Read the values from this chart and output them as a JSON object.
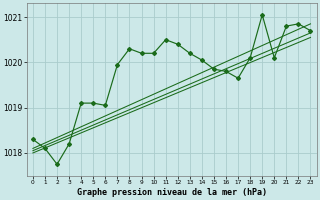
{
  "title": "Graphe pression niveau de la mer (hPa)",
  "x_labels": [
    "0",
    "1",
    "2",
    "3",
    "4",
    "5",
    "6",
    "7",
    "8",
    "9",
    "10",
    "11",
    "12",
    "13",
    "14",
    "15",
    "16",
    "17",
    "18",
    "19",
    "20",
    "21",
    "22",
    "23"
  ],
  "ylim": [
    1017.5,
    1021.3
  ],
  "yticks": [
    1018,
    1019,
    1020,
    1021
  ],
  "main_line": [
    1018.3,
    1018.1,
    1017.75,
    1018.2,
    1019.1,
    1019.1,
    1019.05,
    1019.95,
    1020.3,
    1020.2,
    1020.2,
    1020.5,
    1020.4,
    1020.2,
    1020.05,
    1019.85,
    1019.8,
    1019.65,
    1020.1,
    1021.05,
    1020.1,
    1020.8,
    1020.85,
    1020.7
  ],
  "trend_lines": [
    [
      1018.1,
      1020.85
    ],
    [
      1018.05,
      1020.65
    ],
    [
      1018.0,
      1020.55
    ]
  ],
  "bg_color": "#cce8e8",
  "grid_color": "#aacccc",
  "line_color": "#1a6b1a",
  "marker": "D",
  "marker_size": 2.0,
  "title_fontsize": 6.0,
  "tick_fontsize": 5.5,
  "xtick_fontsize": 4.2
}
